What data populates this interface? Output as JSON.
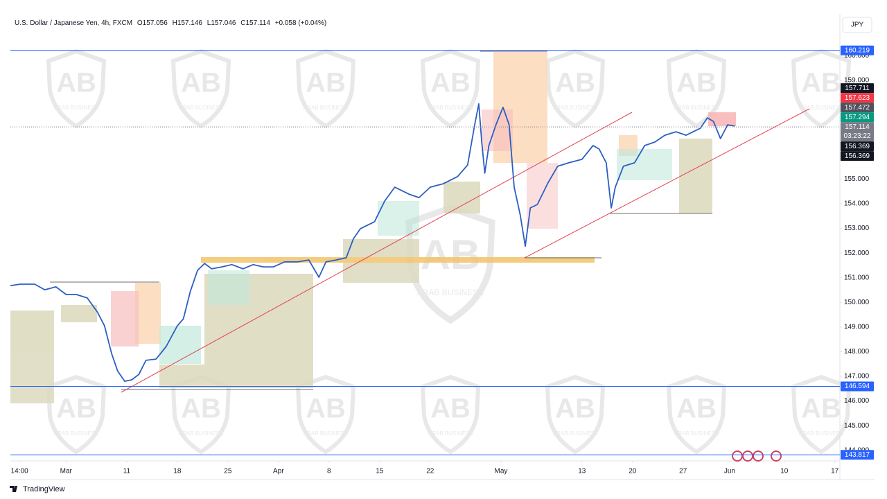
{
  "header": {
    "symbol": "U.S. Dollar / Japanese Yen, 4h, FXCM",
    "ohlc": [
      {
        "label": "O",
        "value": 157.056
      },
      {
        "label": "H",
        "value": 157.146
      },
      {
        "label": "L",
        "value": 157.046
      },
      {
        "label": "C",
        "value": 157.114
      }
    ],
    "change": "+0.058 (+0.04%)",
    "currency_button": "JPY"
  },
  "watermark": {
    "monogram": "AB",
    "text": "ARAB BUSINESS"
  },
  "footer": {
    "brand": "TradingView"
  },
  "chart_data": {
    "type": "line",
    "color": "#2b5ec4",
    "grid": false,
    "x": [
      -5.5,
      -4.5,
      -3.1,
      -2.1,
      -1.0,
      0,
      1.0,
      2.1,
      3.1,
      3.8,
      4.5,
      5.1,
      5.8,
      6.5,
      7.2,
      7.9,
      8.9,
      9.9,
      11.0,
      11.6,
      12.3,
      13.0,
      13.7,
      14.4,
      15.4,
      16.4,
      17.5,
      18.5,
      19.5,
      20.5,
      21.6,
      22.9,
      24.0,
      25.0,
      25.7,
      26.7,
      27.7,
      28.4,
      29.1,
      30.5,
      31.5,
      32.5,
      33.9,
      34.9,
      36.0,
      37.3,
      38.7,
      39.7,
      40.4,
      40.8,
      41.1,
      41.4,
      41.8,
      42.5,
      43.2,
      43.8,
      44.3,
      44.9,
      45.4,
      45.9,
      46.6,
      47.6,
      48.6,
      49.7,
      51.0,
      52.1,
      52.7,
      53.4,
      53.9,
      54.3,
      55.1,
      56.2,
      57.2,
      58.2,
      59.2,
      60.3,
      61.3,
      62.0,
      62.7,
      63.4,
      64.0,
      64.7,
      65.4,
      66.1
    ],
    "values": [
      150.68,
      150.74,
      150.74,
      150.51,
      150.63,
      150.32,
      150.32,
      150.18,
      149.61,
      149.05,
      147.93,
      147.22,
      146.8,
      146.86,
      147.08,
      147.65,
      147.7,
      148.21,
      149.05,
      149.33,
      150.46,
      151.3,
      151.58,
      151.36,
      151.44,
      151.53,
      151.36,
      151.53,
      151.44,
      151.44,
      151.64,
      151.64,
      151.72,
      151.02,
      151.64,
      151.72,
      151.81,
      152.57,
      152.99,
      153.27,
      154.11,
      154.67,
      154.39,
      154.25,
      154.67,
      154.81,
      155.1,
      155.57,
      157.2,
      158.05,
      156.5,
      155.24,
      156.36,
      157.2,
      157.91,
      157.2,
      154.67,
      153.55,
      152.28,
      153.83,
      153.97,
      154.81,
      155.52,
      155.66,
      155.8,
      156.36,
      156.22,
      155.66,
      153.83,
      154.67,
      155.52,
      155.66,
      156.36,
      156.5,
      156.78,
      156.92,
      156.78,
      156.92,
      157.06,
      157.48,
      157.34,
      156.64,
      157.2,
      157.15
    ],
    "xlim": [
      -5.5,
      76.5
    ],
    "xticks": [
      {
        "value": -4.6,
        "label": "14:00"
      },
      {
        "value": 0,
        "label": "Mar"
      },
      {
        "value": 6,
        "label": "11"
      },
      {
        "value": 11,
        "label": "18"
      },
      {
        "value": 16,
        "label": "25"
      },
      {
        "value": 21,
        "label": "Apr"
      },
      {
        "value": 26,
        "label": "8"
      },
      {
        "value": 31,
        "label": "15"
      },
      {
        "value": 36,
        "label": "22"
      },
      {
        "value": 43,
        "label": "May"
      },
      {
        "value": 51,
        "label": "13"
      },
      {
        "value": 56,
        "label": "20"
      },
      {
        "value": 61,
        "label": "27"
      },
      {
        "value": 65.6,
        "label": "Jun"
      },
      {
        "value": 71,
        "label": "10"
      },
      {
        "value": 76,
        "label": "17"
      }
    ],
    "ylim": [
      143.6,
      161.7
    ],
    "yticks": [
      {
        "value": 160,
        "label": "160.000"
      },
      {
        "value": 159,
        "label": "159.000"
      },
      {
        "value": 155,
        "label": "155.000"
      },
      {
        "value": 154,
        "label": "154.000"
      },
      {
        "value": 153,
        "label": "153.000"
      },
      {
        "value": 152,
        "label": "152.000"
      },
      {
        "value": 151,
        "label": "151.000"
      },
      {
        "value": 150,
        "label": "150.000"
      },
      {
        "value": 149,
        "label": "149.000"
      },
      {
        "value": 148,
        "label": "148.000"
      },
      {
        "value": 147,
        "label": "147.000"
      },
      {
        "value": 146,
        "label": "146.000"
      },
      {
        "value": 145,
        "label": "145.000"
      },
      {
        "value": 144,
        "label": "144.000"
      }
    ],
    "price_tags": [
      {
        "price": 160.219,
        "color": "#2962ff",
        "line": "solid"
      },
      {
        "price": 157.711,
        "color": "#131722"
      },
      {
        "price": 157.623,
        "color": "#f23645"
      },
      {
        "price": 157.472,
        "color": "#50535e"
      },
      {
        "price": 157.294,
        "color": "#089981"
      },
      {
        "price": 157.114,
        "color": "#787b86",
        "line": "dotted",
        "countdown": "03:23:22"
      },
      {
        "price": 156.369,
        "color": "#131722"
      },
      {
        "price": 156.369,
        "color": "#131722"
      },
      {
        "price": 146.594,
        "color": "#2962ff",
        "line": "solid"
      },
      {
        "price": 143.817,
        "color": "#2962ff",
        "line": "solid"
      }
    ]
  }
}
